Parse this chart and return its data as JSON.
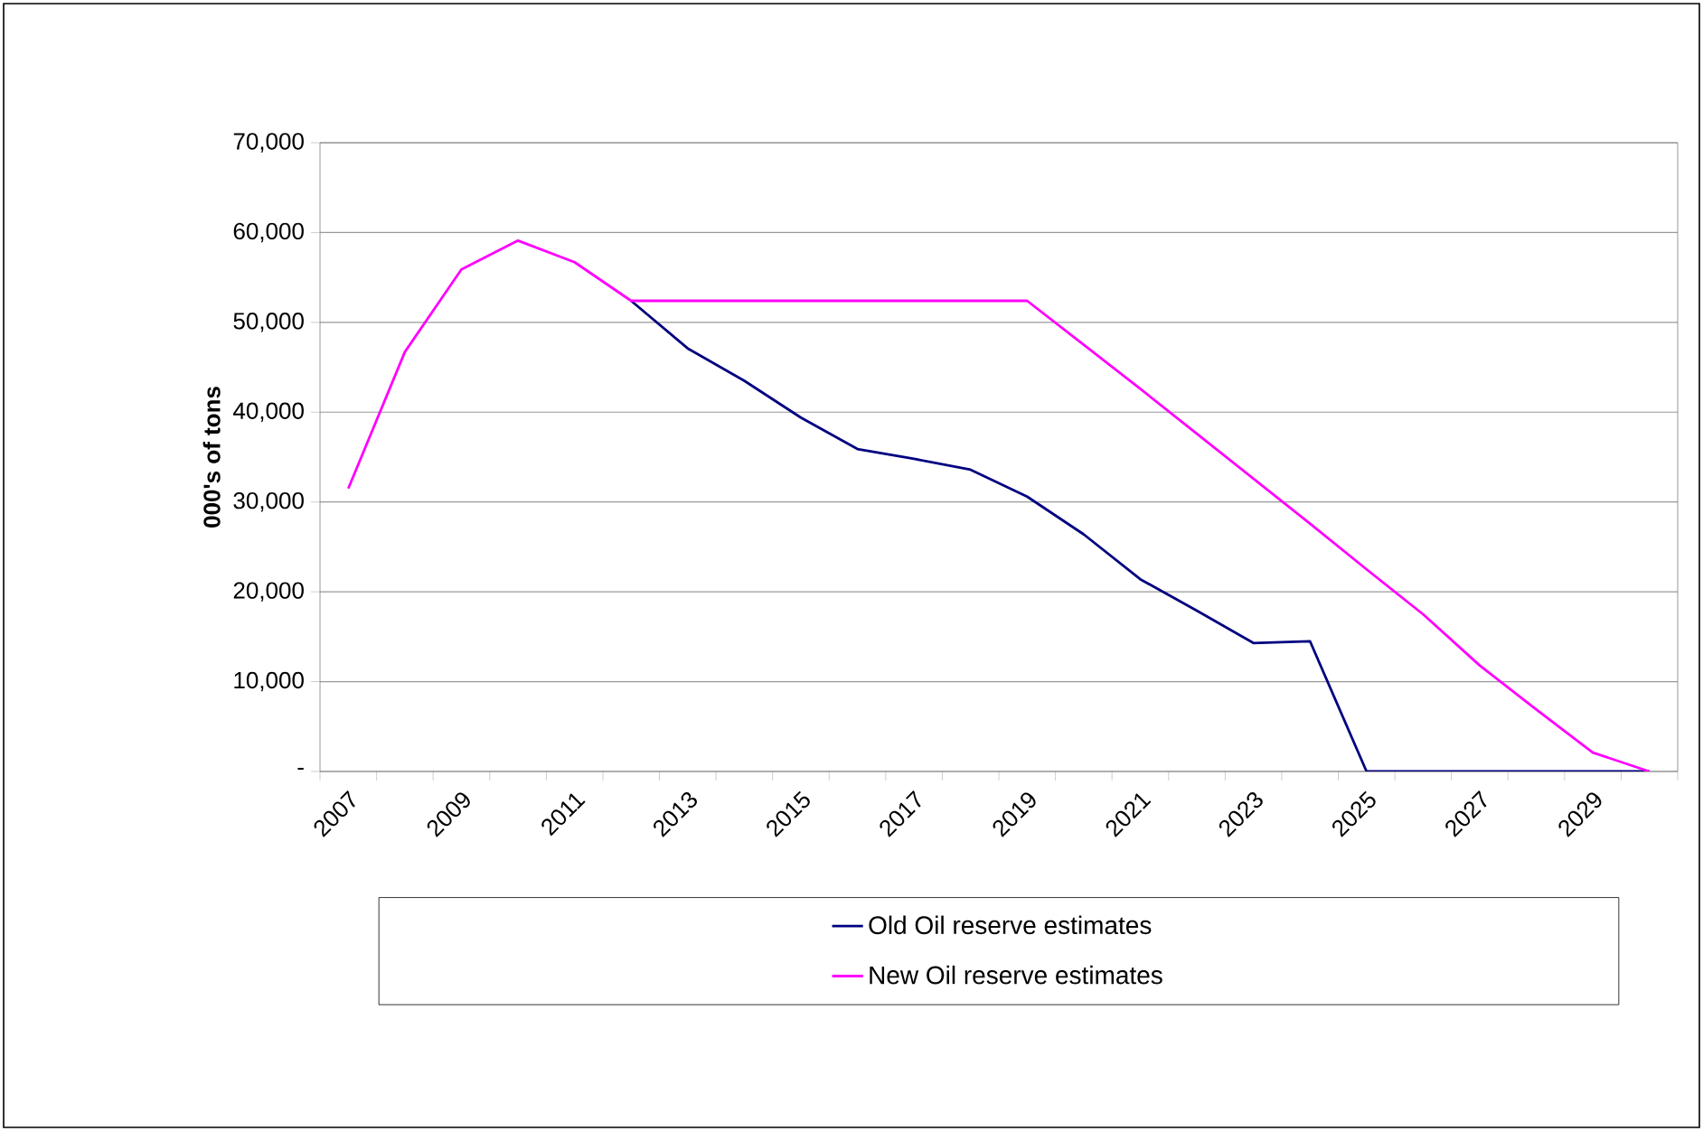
{
  "chart_data": {
    "type": "line",
    "ylabel": "000's of tons",
    "categories": [
      "2007",
      null,
      "2009",
      null,
      "2011",
      null,
      "2013",
      null,
      "2015",
      null,
      "2017",
      null,
      "2019",
      null,
      "2021",
      null,
      "2023",
      null,
      "2025",
      null,
      "2027",
      null,
      "2029",
      null
    ],
    "series": [
      {
        "name": "Old Oil reserve estimates",
        "color": "#000080",
        "values": [
          null,
          null,
          null,
          null,
          null,
          52400,
          47100,
          43500,
          39400,
          35900,
          34800,
          33600,
          30600,
          26400,
          21400,
          17900,
          14300,
          14500,
          0,
          0,
          0,
          0,
          0,
          0
        ]
      },
      {
        "name": "New Oil reserve estimates",
        "color": "#ff00ff",
        "values": [
          31500,
          46700,
          55900,
          59100,
          56700,
          52400,
          52400,
          52400,
          52400,
          52400,
          52400,
          52400,
          52400,
          47500,
          42600,
          37600,
          32600,
          27600,
          22500,
          17500,
          11800,
          6900,
          2100,
          0
        ]
      }
    ],
    "ylim": [
      0,
      70000
    ],
    "yticks": [
      {
        "value": 0,
        "label": "-"
      },
      {
        "value": 10000,
        "label": "10,000"
      },
      {
        "value": 20000,
        "label": "20,000"
      },
      {
        "value": 30000,
        "label": "30,000"
      },
      {
        "value": 40000,
        "label": "40,000"
      },
      {
        "value": 50000,
        "label": "50,000"
      },
      {
        "value": 60000,
        "label": "60,000"
      },
      {
        "value": 70000,
        "label": "70,000"
      }
    ],
    "grid": "y",
    "legend": "bottom",
    "marker": "none",
    "line_style": "solid"
  }
}
